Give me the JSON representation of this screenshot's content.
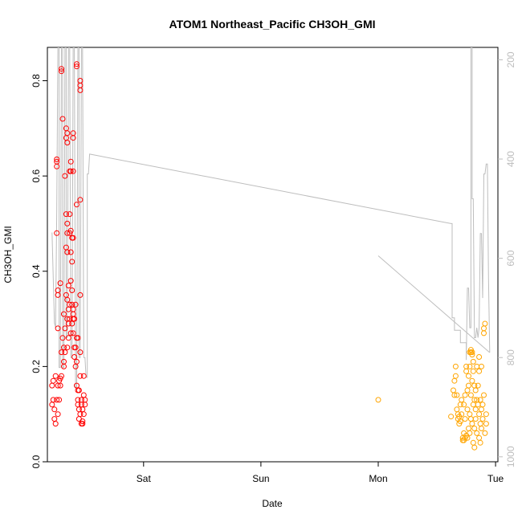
{
  "chart_data": {
    "type": "scatter",
    "title": "ATOM1 Northeast_Pacific CH3OH_GMI",
    "xlabel": "Date",
    "ylabel": "CH3OH_GMI",
    "xlim": [
      -0.82,
      3.02
    ],
    "ylim": [
      0.0,
      0.87
    ],
    "y_ticks": [
      0.0,
      0.2,
      0.4,
      0.6,
      0.8
    ],
    "y_tick_labels": [
      "0.0",
      "0.2",
      "0.4",
      "0.6",
      "0.8"
    ],
    "x_ticks": [
      0,
      1,
      2,
      3
    ],
    "x_tick_labels": [
      "Sat",
      "Sun",
      "Mon",
      "Tue"
    ],
    "x_unit_note": "",
    "secondary_axis": {
      "label": "",
      "lim": [
        1010,
        175
      ],
      "ticks": [
        200,
        400,
        600,
        800,
        1000
      ],
      "tick_labels": [
        "200",
        "400",
        "600",
        "800",
        "1000"
      ],
      "color": "#bdbdbd"
    },
    "grid": false,
    "legend": "none",
    "series": [
      {
        "color": "#ff0000",
        "points": [
          [
            -0.78,
            0.12
          ],
          [
            -0.78,
            0.16
          ],
          [
            -0.77,
            0.13
          ],
          [
            -0.77,
            0.17
          ],
          [
            -0.76,
            0.11
          ],
          [
            -0.76,
            0.09
          ],
          [
            -0.75,
            0.08
          ],
          [
            -0.75,
            0.18
          ],
          [
            -0.74,
            0.13
          ],
          [
            -0.73,
            0.1
          ],
          [
            -0.73,
            0.16
          ],
          [
            -0.72,
            0.17
          ],
          [
            -0.72,
            0.13
          ],
          [
            -0.71,
            0.16
          ],
          [
            -0.71,
            0.175
          ],
          [
            -0.7,
            0.18
          ],
          [
            -0.7,
            0.23
          ],
          [
            -0.7,
            0.82
          ],
          [
            -0.7,
            0.825
          ],
          [
            -0.69,
            0.72
          ],
          [
            -0.69,
            0.26
          ],
          [
            -0.68,
            0.24
          ],
          [
            -0.68,
            0.21
          ],
          [
            -0.68,
            0.2
          ],
          [
            -0.68,
            0.31
          ],
          [
            -0.67,
            0.6
          ],
          [
            -0.67,
            0.23
          ],
          [
            -0.67,
            0.28
          ],
          [
            -0.66,
            0.68
          ],
          [
            -0.66,
            0.7
          ],
          [
            -0.66,
            0.52
          ],
          [
            -0.66,
            0.45
          ],
          [
            -0.66,
            0.35
          ],
          [
            -0.65,
            0.69
          ],
          [
            -0.65,
            0.67
          ],
          [
            -0.65,
            0.5
          ],
          [
            -0.65,
            0.48
          ],
          [
            -0.65,
            0.44
          ],
          [
            -0.65,
            0.34
          ],
          [
            -0.65,
            0.3
          ],
          [
            -0.65,
            0.24
          ],
          [
            -0.64,
            0.37
          ],
          [
            -0.64,
            0.32
          ],
          [
            -0.64,
            0.29
          ],
          [
            -0.64,
            0.26
          ],
          [
            -0.63,
            0.52
          ],
          [
            -0.63,
            0.48
          ],
          [
            -0.63,
            0.61
          ],
          [
            -0.63,
            0.33
          ],
          [
            -0.63,
            0.3
          ],
          [
            -0.62,
            0.61
          ],
          [
            -0.62,
            0.63
          ],
          [
            -0.62,
            0.485
          ],
          [
            -0.62,
            0.44
          ],
          [
            -0.62,
            0.38
          ],
          [
            -0.62,
            0.27
          ],
          [
            -0.61,
            0.47
          ],
          [
            -0.61,
            0.42
          ],
          [
            -0.61,
            0.36
          ],
          [
            -0.61,
            0.33
          ],
          [
            -0.61,
            0.29
          ],
          [
            -0.6,
            0.69
          ],
          [
            -0.6,
            0.68
          ],
          [
            -0.6,
            0.61
          ],
          [
            -0.6,
            0.47
          ],
          [
            -0.6,
            0.32
          ],
          [
            -0.6,
            0.31
          ],
          [
            -0.6,
            0.3
          ],
          [
            -0.6,
            0.27
          ],
          [
            -0.59,
            0.3
          ],
          [
            -0.59,
            0.24
          ],
          [
            -0.59,
            0.22
          ],
          [
            -0.58,
            0.33
          ],
          [
            -0.58,
            0.24
          ],
          [
            -0.58,
            0.2
          ],
          [
            -0.57,
            0.835
          ],
          [
            -0.57,
            0.83
          ],
          [
            -0.57,
            0.54
          ],
          [
            -0.57,
            0.26
          ],
          [
            -0.57,
            0.21
          ],
          [
            -0.57,
            0.16
          ],
          [
            -0.56,
            0.26
          ],
          [
            -0.56,
            0.15
          ],
          [
            -0.56,
            0.13
          ],
          [
            -0.56,
            0.12
          ],
          [
            -0.55,
            0.15
          ],
          [
            -0.55,
            0.11
          ],
          [
            -0.55,
            0.09
          ],
          [
            -0.54,
            0.79
          ],
          [
            -0.54,
            0.8
          ],
          [
            -0.54,
            0.78
          ],
          [
            -0.54,
            0.55
          ],
          [
            -0.54,
            0.35
          ],
          [
            -0.54,
            0.23
          ],
          [
            -0.54,
            0.18
          ],
          [
            -0.54,
            0.1
          ],
          [
            -0.53,
            0.08
          ],
          [
            -0.53,
            0.12
          ],
          [
            -0.53,
            0.13
          ],
          [
            -0.52,
            0.08
          ],
          [
            -0.52,
            0.085
          ],
          [
            -0.52,
            0.11
          ],
          [
            -0.51,
            0.1
          ],
          [
            -0.51,
            0.14
          ],
          [
            -0.51,
            0.18
          ],
          [
            -0.5,
            0.12
          ],
          [
            -0.5,
            0.13
          ],
          [
            -0.74,
            0.63
          ],
          [
            -0.74,
            0.635
          ],
          [
            -0.74,
            0.62
          ],
          [
            -0.74,
            0.48
          ],
          [
            -0.73,
            0.36
          ],
          [
            -0.73,
            0.35
          ],
          [
            -0.73,
            0.28
          ],
          [
            -0.71,
            0.375
          ]
        ]
      },
      {
        "color": "#ffa500",
        "points": [
          [
            2.0,
            0.13
          ],
          [
            2.62,
            0.095
          ],
          [
            2.64,
            0.15
          ],
          [
            2.65,
            0.17
          ],
          [
            2.65,
            0.14
          ],
          [
            2.66,
            0.2
          ],
          [
            2.66,
            0.18
          ],
          [
            2.67,
            0.14
          ],
          [
            2.67,
            0.11
          ],
          [
            2.68,
            0.1
          ],
          [
            2.68,
            0.09
          ],
          [
            2.69,
            0.08
          ],
          [
            2.69,
            0.095
          ],
          [
            2.7,
            0.085
          ],
          [
            2.7,
            0.12
          ],
          [
            2.71,
            0.13
          ],
          [
            2.71,
            0.1
          ],
          [
            2.72,
            0.05
          ],
          [
            2.72,
            0.045
          ],
          [
            2.73,
            0.045
          ],
          [
            2.73,
            0.06
          ],
          [
            2.73,
            0.12
          ],
          [
            2.74,
            0.05
          ],
          [
            2.74,
            0.09
          ],
          [
            2.74,
            0.14
          ],
          [
            2.75,
            0.055
          ],
          [
            2.75,
            0.19
          ],
          [
            2.75,
            0.2
          ],
          [
            2.76,
            0.11
          ],
          [
            2.76,
            0.15
          ],
          [
            2.76,
            0.05
          ],
          [
            2.77,
            0.18
          ],
          [
            2.77,
            0.16
          ],
          [
            2.77,
            0.07
          ],
          [
            2.78,
            0.2
          ],
          [
            2.78,
            0.1
          ],
          [
            2.78,
            0.06
          ],
          [
            2.79,
            0.09
          ],
          [
            2.79,
            0.14
          ],
          [
            2.79,
            0.23
          ],
          [
            2.8,
            0.23
          ],
          [
            2.8,
            0.17
          ],
          [
            2.8,
            0.08
          ],
          [
            2.81,
            0.21
          ],
          [
            2.81,
            0.19
          ],
          [
            2.81,
            0.12
          ],
          [
            2.81,
            0.04
          ],
          [
            2.82,
            0.16
          ],
          [
            2.82,
            0.13
          ],
          [
            2.82,
            0.07
          ],
          [
            2.82,
            0.03
          ],
          [
            2.83,
            0.15
          ],
          [
            2.83,
            0.11
          ],
          [
            2.83,
            0.09
          ],
          [
            2.84,
            0.2
          ],
          [
            2.84,
            0.13
          ],
          [
            2.84,
            0.06
          ],
          [
            2.85,
            0.16
          ],
          [
            2.85,
            0.12
          ],
          [
            2.86,
            0.19
          ],
          [
            2.86,
            0.22
          ],
          [
            2.86,
            0.1
          ],
          [
            2.86,
            0.05
          ],
          [
            2.87,
            0.08
          ],
          [
            2.87,
            0.13
          ],
          [
            2.87,
            0.04
          ],
          [
            2.88,
            0.2
          ],
          [
            2.88,
            0.11
          ],
          [
            2.88,
            0.07
          ],
          [
            2.89,
            0.09
          ],
          [
            2.89,
            0.12
          ],
          [
            2.9,
            0.28
          ],
          [
            2.9,
            0.27
          ],
          [
            2.9,
            0.14
          ],
          [
            2.91,
            0.29
          ],
          [
            2.91,
            0.06
          ],
          [
            2.92,
            0.08
          ],
          [
            2.92,
            0.1
          ],
          [
            2.79,
            0.235
          ],
          [
            2.8,
            0.225
          ],
          [
            2.78,
            0.23
          ]
        ]
      }
    ],
    "pressure_profile": [
      [
        -0.78,
        548
      ],
      [
        -0.77,
        640
      ],
      [
        -0.76,
        730
      ],
      [
        -0.75,
        740
      ],
      [
        -0.74,
        500
      ],
      [
        -0.73,
        175
      ],
      [
        -0.72,
        175
      ],
      [
        -0.72,
        820
      ],
      [
        -0.71,
        820
      ],
      [
        -0.7,
        175
      ],
      [
        -0.69,
        175
      ],
      [
        -0.69,
        820
      ],
      [
        -0.68,
        820
      ],
      [
        -0.67,
        175
      ],
      [
        -0.66,
        175
      ],
      [
        -0.66,
        760
      ],
      [
        -0.65,
        760
      ],
      [
        -0.64,
        175
      ],
      [
        -0.63,
        175
      ],
      [
        -0.62,
        800
      ],
      [
        -0.61,
        800
      ],
      [
        -0.6,
        175
      ],
      [
        -0.59,
        175
      ],
      [
        -0.58,
        860
      ],
      [
        -0.57,
        860
      ],
      [
        -0.56,
        175
      ],
      [
        -0.55,
        175
      ],
      [
        -0.55,
        800
      ],
      [
        -0.54,
        800
      ],
      [
        -0.53,
        175
      ],
      [
        -0.52,
        175
      ],
      [
        -0.51,
        800
      ],
      [
        -0.5,
        800
      ],
      [
        -0.49,
        840
      ],
      [
        -0.48,
        840
      ],
      [
        -0.48,
        430
      ],
      [
        -0.47,
        430
      ],
      [
        -0.46,
        390
      ],
      [
        2.62,
        530
      ],
      [
        2.63,
        530
      ],
      [
        2.63,
        720
      ],
      [
        2.65,
        720
      ],
      [
        2.65,
        745
      ],
      [
        2.7,
        745
      ],
      [
        2.7,
        770
      ],
      [
        2.75,
        770
      ],
      [
        2.75,
        805
      ],
      [
        2.76,
        660
      ],
      [
        2.77,
        660
      ],
      [
        2.78,
        740
      ],
      [
        2.79,
        740
      ],
      [
        2.79,
        175
      ],
      [
        2.8,
        175
      ],
      [
        2.8,
        480
      ],
      [
        2.81,
        480
      ],
      [
        2.82,
        760
      ],
      [
        2.83,
        760
      ],
      [
        2.84,
        740
      ],
      [
        2.85,
        760
      ],
      [
        2.86,
        740
      ],
      [
        2.87,
        550
      ],
      [
        2.88,
        550
      ],
      [
        2.89,
        680
      ],
      [
        2.9,
        430
      ],
      [
        2.91,
        430
      ],
      [
        2.92,
        410
      ],
      [
        2.93,
        410
      ],
      [
        2.94,
        640
      ],
      [
        2.95,
        790
      ]
    ],
    "pressure_profile_2": [
      [
        2.0,
        595
      ],
      [
        2.95,
        790
      ]
    ],
    "pressure_axis_label": ""
  }
}
